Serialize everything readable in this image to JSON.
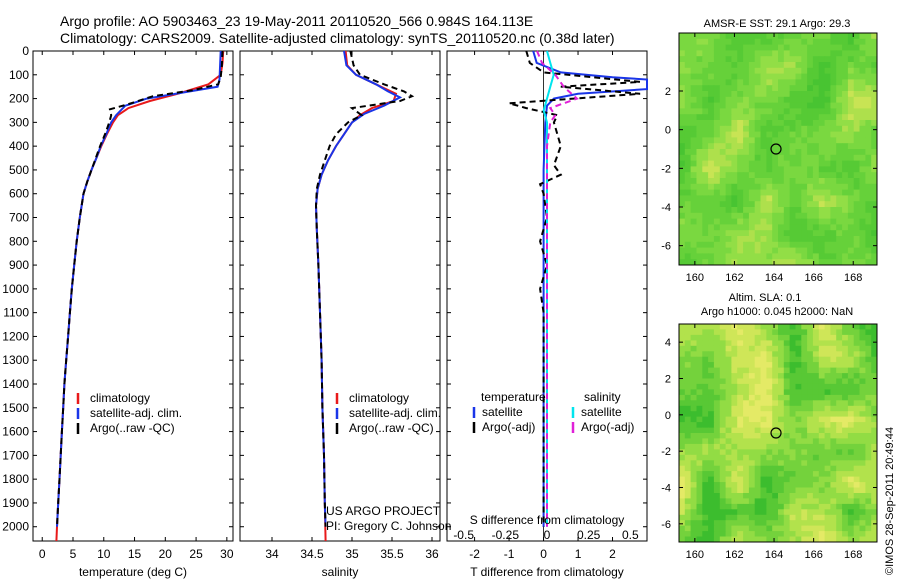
{
  "header": {
    "line1": "Argo profile: AO 5903463_23 19-May-2011 20110520_566 0.984S 164.113E",
    "line2": "Climatology: CARS2009. Satellite-adjusted climatology: synTS_20110520.nc (0.38d later)"
  },
  "footer": {
    "project": "US ARGO PROJECT",
    "pi": "PI: Gregory C. Johnson",
    "stamp": "©IMOS 28-Sep-2011 20:49:44"
  },
  "colors": {
    "climatology": "#e8191a",
    "satellite": "#1a35e8",
    "argo": "#000000",
    "sal_satellite": "#00e5ee",
    "sal_argo": "#e020d8"
  },
  "chart_data": [
    {
      "type": "line",
      "id": "temperature",
      "xlabel": "temperature (deg C)",
      "xlim": [
        -1.5,
        31
      ],
      "xticks": [
        0,
        5,
        10,
        15,
        20,
        25,
        30
      ],
      "ylim": [
        0,
        2060
      ],
      "yticks": [
        0,
        100,
        200,
        300,
        400,
        500,
        600,
        700,
        800,
        900,
        1000,
        1100,
        1200,
        1300,
        1400,
        1500,
        1600,
        1700,
        1800,
        1900,
        2000
      ],
      "y_reversed": true,
      "legend": [
        "climatology",
        "satellite-adj. clim.",
        "Argo(..raw -QC)"
      ],
      "series": [
        {
          "name": "climatology",
          "color": "climatology",
          "dash": false,
          "points": [
            [
              29.4,
              0
            ],
            [
              29.3,
              50
            ],
            [
              29.0,
              100
            ],
            [
              27.0,
              140
            ],
            [
              22.0,
              180
            ],
            [
              17.5,
              210
            ],
            [
              14.0,
              240
            ],
            [
              12.3,
              270
            ],
            [
              11.5,
              300
            ],
            [
              10.5,
              350
            ],
            [
              9.6,
              400
            ],
            [
              8.8,
              450
            ],
            [
              8.0,
              500
            ],
            [
              7.3,
              550
            ],
            [
              6.7,
              600
            ],
            [
              6.1,
              700
            ],
            [
              5.6,
              800
            ],
            [
              5.2,
              900
            ],
            [
              4.8,
              1000
            ],
            [
              4.5,
              1100
            ],
            [
              4.2,
              1200
            ],
            [
              3.9,
              1300
            ],
            [
              3.6,
              1400
            ],
            [
              3.4,
              1500
            ],
            [
              3.2,
              1600
            ],
            [
              3.0,
              1700
            ],
            [
              2.8,
              1800
            ],
            [
              2.6,
              1900
            ],
            [
              2.4,
              2000
            ],
            [
              2.3,
              2060
            ]
          ]
        },
        {
          "name": "satellite-adj. clim.",
          "color": "satellite",
          "dash": false,
          "points": [
            [
              29.0,
              0
            ],
            [
              28.9,
              60
            ],
            [
              28.8,
              120
            ],
            [
              28.5,
              150
            ],
            [
              24.0,
              170
            ],
            [
              17.0,
              200
            ],
            [
              13.5,
              230
            ],
            [
              12.0,
              270
            ],
            [
              11.2,
              300
            ],
            [
              10.4,
              350
            ],
            [
              9.5,
              400
            ],
            [
              8.8,
              450
            ],
            [
              8.0,
              500
            ],
            [
              7.3,
              550
            ],
            [
              6.7,
              600
            ],
            [
              6.1,
              700
            ],
            [
              5.6,
              800
            ],
            [
              5.2,
              900
            ],
            [
              4.8,
              1000
            ],
            [
              4.5,
              1100
            ],
            [
              4.2,
              1200
            ],
            [
              3.9,
              1300
            ],
            [
              3.6,
              1400
            ],
            [
              3.4,
              1500
            ],
            [
              3.2,
              1600
            ],
            [
              3.0,
              1700
            ],
            [
              2.8,
              1800
            ],
            [
              2.6,
              1900
            ],
            [
              2.4,
              2000
            ]
          ]
        },
        {
          "name": "Argo(..raw -QC)",
          "color": "argo",
          "dash": true,
          "points": [
            [
              29.3,
              0
            ],
            [
              29.2,
              60
            ],
            [
              29.0,
              110
            ],
            [
              28.6,
              140
            ],
            [
              24.5,
              165
            ],
            [
              18.0,
              190
            ],
            [
              13.8,
              225
            ],
            [
              11.0,
              245
            ],
            [
              11.2,
              270
            ],
            [
              10.9,
              300
            ],
            [
              10.2,
              350
            ],
            [
              9.4,
              400
            ],
            [
              8.7,
              450
            ],
            [
              8.0,
              500
            ],
            [
              7.3,
              550
            ],
            [
              6.7,
              600
            ],
            [
              6.1,
              700
            ],
            [
              5.6,
              800
            ],
            [
              5.2,
              900
            ],
            [
              4.8,
              1000
            ],
            [
              4.5,
              1100
            ],
            [
              4.2,
              1200
            ],
            [
              3.9,
              1300
            ],
            [
              3.6,
              1400
            ],
            [
              3.4,
              1500
            ],
            [
              3.2,
              1600
            ],
            [
              3.0,
              1700
            ],
            [
              2.8,
              1800
            ],
            [
              2.6,
              1900
            ],
            [
              2.4,
              2000
            ]
          ]
        }
      ]
    },
    {
      "type": "line",
      "id": "salinity",
      "xlabel": "salinity",
      "xlim": [
        33.6,
        36.1
      ],
      "xticks": [
        34,
        34.5,
        35,
        35.5,
        36
      ],
      "xticklabels": [
        "34",
        "34.5",
        "35",
        "35.5",
        "36"
      ],
      "ylim": [
        0,
        2060
      ],
      "y_reversed": true,
      "legend": [
        "climatology",
        "satellite-adj. clim.",
        "Argo(..raw -QC)"
      ],
      "series": [
        {
          "name": "climatology",
          "color": "climatology",
          "dash": false,
          "points": [
            [
              34.92,
              0
            ],
            [
              34.94,
              60
            ],
            [
              35.05,
              100
            ],
            [
              35.3,
              140
            ],
            [
              35.55,
              180
            ],
            [
              35.52,
              210
            ],
            [
              35.25,
              240
            ],
            [
              35.1,
              270
            ],
            [
              35.0,
              300
            ],
            [
              34.9,
              350
            ],
            [
              34.8,
              400
            ],
            [
              34.7,
              460
            ],
            [
              34.62,
              520
            ],
            [
              34.57,
              580
            ],
            [
              34.55,
              650
            ],
            [
              34.56,
              750
            ],
            [
              34.58,
              900
            ],
            [
              34.6,
              1100
            ],
            [
              34.62,
              1300
            ],
            [
              34.63,
              1500
            ],
            [
              34.65,
              1700
            ],
            [
              34.66,
              1900
            ],
            [
              34.67,
              2060
            ]
          ]
        },
        {
          "name": "satellite-adj. clim.",
          "color": "satellite",
          "dash": false,
          "points": [
            [
              34.9,
              0
            ],
            [
              34.93,
              60
            ],
            [
              35.05,
              100
            ],
            [
              35.3,
              140
            ],
            [
              35.45,
              170
            ],
            [
              35.6,
              195
            ],
            [
              35.4,
              230
            ],
            [
              35.15,
              265
            ],
            [
              35.0,
              300
            ],
            [
              34.9,
              350
            ],
            [
              34.8,
              400
            ],
            [
              34.7,
              460
            ],
            [
              34.62,
              520
            ],
            [
              34.57,
              580
            ],
            [
              34.55,
              650
            ],
            [
              34.56,
              750
            ],
            [
              34.58,
              900
            ],
            [
              34.6,
              1100
            ],
            [
              34.62,
              1300
            ],
            [
              34.63,
              1500
            ],
            [
              34.65,
              1700
            ],
            [
              34.66,
              1900
            ],
            [
              34.67,
              2000
            ]
          ]
        },
        {
          "name": "Argo(..raw -QC)",
          "color": "argo",
          "dash": true,
          "points": [
            [
              34.98,
              0
            ],
            [
              35.02,
              60
            ],
            [
              35.1,
              100
            ],
            [
              35.4,
              140
            ],
            [
              35.65,
              170
            ],
            [
              35.75,
              190
            ],
            [
              35.6,
              210
            ],
            [
              35.0,
              240
            ],
            [
              35.12,
              270
            ],
            [
              34.95,
              300
            ],
            [
              34.8,
              350
            ],
            [
              34.72,
              400
            ],
            [
              34.66,
              460
            ],
            [
              34.6,
              520
            ],
            [
              34.56,
              580
            ],
            [
              34.55,
              650
            ],
            [
              34.56,
              750
            ],
            [
              34.58,
              900
            ],
            [
              34.6,
              1100
            ],
            [
              34.62,
              1300
            ],
            [
              34.63,
              1500
            ],
            [
              34.65,
              1700
            ],
            [
              34.66,
              1900
            ],
            [
              34.67,
              2000
            ]
          ]
        }
      ]
    },
    {
      "type": "line",
      "id": "difference",
      "xlabel": "T difference from climatology",
      "xlim": [
        -2.8,
        3.0
      ],
      "xticks": [
        -2,
        -1,
        0,
        1,
        2
      ],
      "top_label": "S difference from climatology",
      "top_ticks": [
        -0.5,
        -0.25,
        0,
        0.25,
        0.5
      ],
      "top_ticklabels": [
        "-0.5",
        "-0.25",
        "0",
        "0.25",
        "0.5"
      ],
      "ylim": [
        0,
        2060
      ],
      "y_reversed": true,
      "legend_titles": {
        "temperature": "temperature",
        "salinity": "salinity"
      },
      "legend": [
        "satellite",
        "Argo(-adj)",
        "satellite",
        "Argo(-adj)"
      ],
      "series": [
        {
          "name": "satellite",
          "group": "temperature",
          "color": "satellite",
          "dash": false,
          "points": [
            [
              -0.3,
              0
            ],
            [
              -0.2,
              50
            ],
            [
              0.5,
              90
            ],
            [
              2.0,
              110
            ],
            [
              3.0,
              120
            ],
            [
              3.0,
              160
            ],
            [
              1.0,
              180
            ],
            [
              0.3,
              200
            ],
            [
              0.1,
              230
            ],
            [
              0.05,
              300
            ],
            [
              0.0,
              500
            ],
            [
              0.0,
              2000
            ]
          ]
        },
        {
          "name": "Argo(-adj)",
          "group": "temperature",
          "color": "argo",
          "dash": true,
          "points": [
            [
              -0.5,
              0
            ],
            [
              -0.4,
              50
            ],
            [
              0.0,
              90
            ],
            [
              2.8,
              130
            ],
            [
              0.5,
              150
            ],
            [
              2.8,
              180
            ],
            [
              -1.0,
              220
            ],
            [
              -0.5,
              240
            ],
            [
              0.4,
              270
            ],
            [
              0.3,
              300
            ],
            [
              0.5,
              400
            ],
            [
              0.3,
              480
            ],
            [
              0.5,
              520
            ],
            [
              -0.1,
              560
            ],
            [
              0.0,
              600
            ],
            [
              0.1,
              700
            ],
            [
              -0.1,
              800
            ],
            [
              0.1,
              900
            ],
            [
              -0.1,
              1000
            ],
            [
              0.0,
              1100
            ],
            [
              0.0,
              2000
            ]
          ]
        },
        {
          "name": "satellite",
          "group": "salinity",
          "color": "sal_satellite",
          "dash": false,
          "points": [
            [
              0.0,
              0
            ],
            [
              0.02,
              50
            ],
            [
              0.04,
              100
            ],
            [
              0.02,
              150
            ],
            [
              0.0,
              200
            ],
            [
              -0.02,
              250
            ],
            [
              0.0,
              300
            ],
            [
              0.0,
              500
            ],
            [
              0.0,
              2000
            ]
          ]
        },
        {
          "name": "Argo(-adj)",
          "group": "salinity",
          "color": "sal_argo",
          "dash": true,
          "points": [
            [
              -0.06,
              0
            ],
            [
              -0.03,
              50
            ],
            [
              0.05,
              100
            ],
            [
              0.1,
              150
            ],
            [
              0.18,
              200
            ],
            [
              0.02,
              240
            ],
            [
              0.05,
              270
            ],
            [
              0.02,
              300
            ],
            [
              0.0,
              400
            ],
            [
              0.0,
              500
            ],
            [
              0.0,
              600
            ],
            [
              0.0,
              2000
            ]
          ]
        }
      ]
    },
    {
      "type": "heatmap",
      "id": "sst-map",
      "title": "AMSR-E SST: 29.1 Argo: 29.3",
      "xticks": [
        160,
        162,
        164,
        166,
        168
      ],
      "yticks": [
        2,
        0,
        -2,
        -4,
        -6
      ],
      "yticklabels": [
        "2",
        "0",
        "-2",
        "-4",
        "-6"
      ],
      "xlim": [
        159.2,
        169.2
      ],
      "ylim": [
        -7.0,
        5.0
      ],
      "float_position": [
        164.1,
        -1.0
      ]
    },
    {
      "type": "heatmap",
      "id": "sla-map",
      "title_line1": "Altim. SLA: 0.1",
      "title_line2": "Argo h1000: 0.045 h2000: NaN",
      "xticks": [
        160,
        162,
        164,
        166,
        168
      ],
      "yticks": [
        4,
        2,
        0,
        -2,
        -4,
        -6
      ],
      "yticklabels": [
        "4",
        "2",
        "0",
        "-2",
        "-4",
        "-6"
      ],
      "xlim": [
        159.2,
        169.2
      ],
      "ylim": [
        -7.0,
        5.0
      ],
      "float_position": [
        164.1,
        -1.0
      ]
    }
  ]
}
